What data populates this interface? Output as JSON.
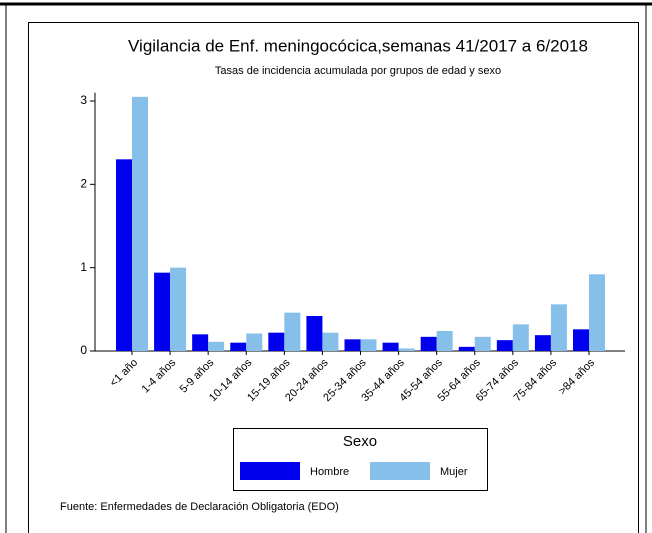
{
  "chart_data": {
    "type": "bar",
    "title": "Vigilancia de Enf. meningocócica,semanas 41/2017 a 6/2018",
    "subtitle": "Tasas de incidencia acumulada por grupos de edad y sexo",
    "categories": [
      "<1 año",
      "1-4 años",
      "5-9 años",
      "10-14 años",
      "15-19 años",
      "20-24 años",
      "25-34 años",
      "35-44 años",
      "45-54 años",
      "55-64 años",
      "65-74 años",
      "75-84 años",
      ">84 años"
    ],
    "series": [
      {
        "name": "Hombre",
        "color": "#0000ee",
        "values": [
          2.3,
          0.94,
          0.2,
          0.1,
          0.22,
          0.42,
          0.14,
          0.1,
          0.17,
          0.05,
          0.13,
          0.19,
          0.26
        ]
      },
      {
        "name": "Mujer",
        "color": "#86bfea",
        "values": [
          3.05,
          1.0,
          0.11,
          0.21,
          0.46,
          0.22,
          0.14,
          0.03,
          0.24,
          0.17,
          0.32,
          0.56,
          0.92
        ]
      }
    ],
    "ylim": [
      0,
      3.1
    ],
    "yticks": [
      0,
      1,
      2,
      3
    ],
    "legend_title": "Sexo",
    "note": "Fuente: Enfermedades de Declaración Obligatoria (EDO)"
  }
}
